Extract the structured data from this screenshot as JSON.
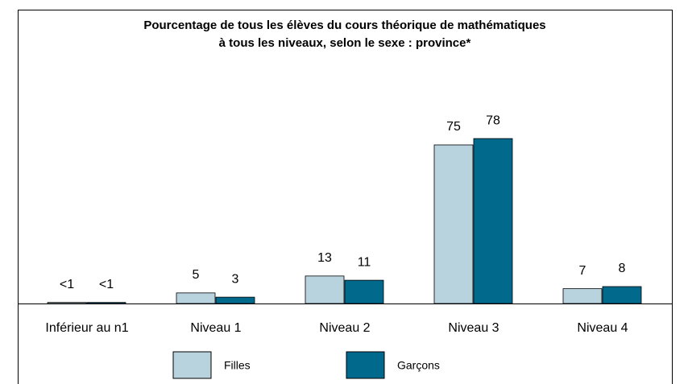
{
  "chart_data": {
    "type": "bar",
    "title": [
      "Pourcentage de tous les élèves du cours théorique de mathématiques",
      "à tous les niveaux, selon le sexe : province*"
    ],
    "categories": [
      "Inférieur au n1",
      "Niveau 1",
      "Niveau 2",
      "Niveau 3",
      "Niveau 4"
    ],
    "series": [
      {
        "name": "Filles",
        "color": "#b9d3de",
        "values": [
          0.5,
          5,
          13,
          75,
          7
        ],
        "value_labels": [
          "<1",
          "5",
          "13",
          "75",
          "7"
        ]
      },
      {
        "name": "Garçons",
        "color": "#00698c",
        "values": [
          0.5,
          3,
          11,
          78,
          8
        ],
        "value_labels": [
          "<1",
          "3",
          "11",
          "78",
          "8"
        ]
      }
    ]
  }
}
